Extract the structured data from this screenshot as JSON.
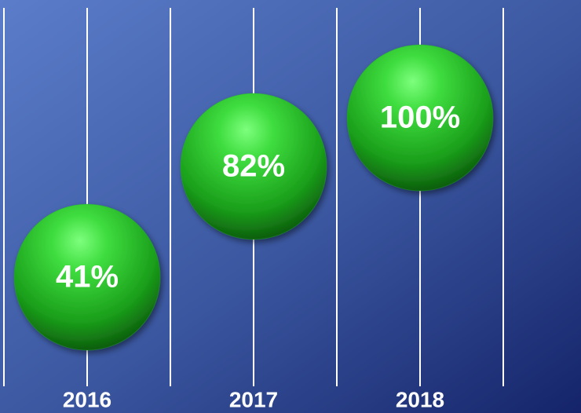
{
  "chart_data": {
    "type": "bubble",
    "categories": [
      "2016",
      "2017",
      "2018"
    ],
    "values": [
      41,
      82,
      100
    ],
    "value_labels": [
      "41%",
      "82%",
      "100%"
    ],
    "color": "#22b022"
  }
}
